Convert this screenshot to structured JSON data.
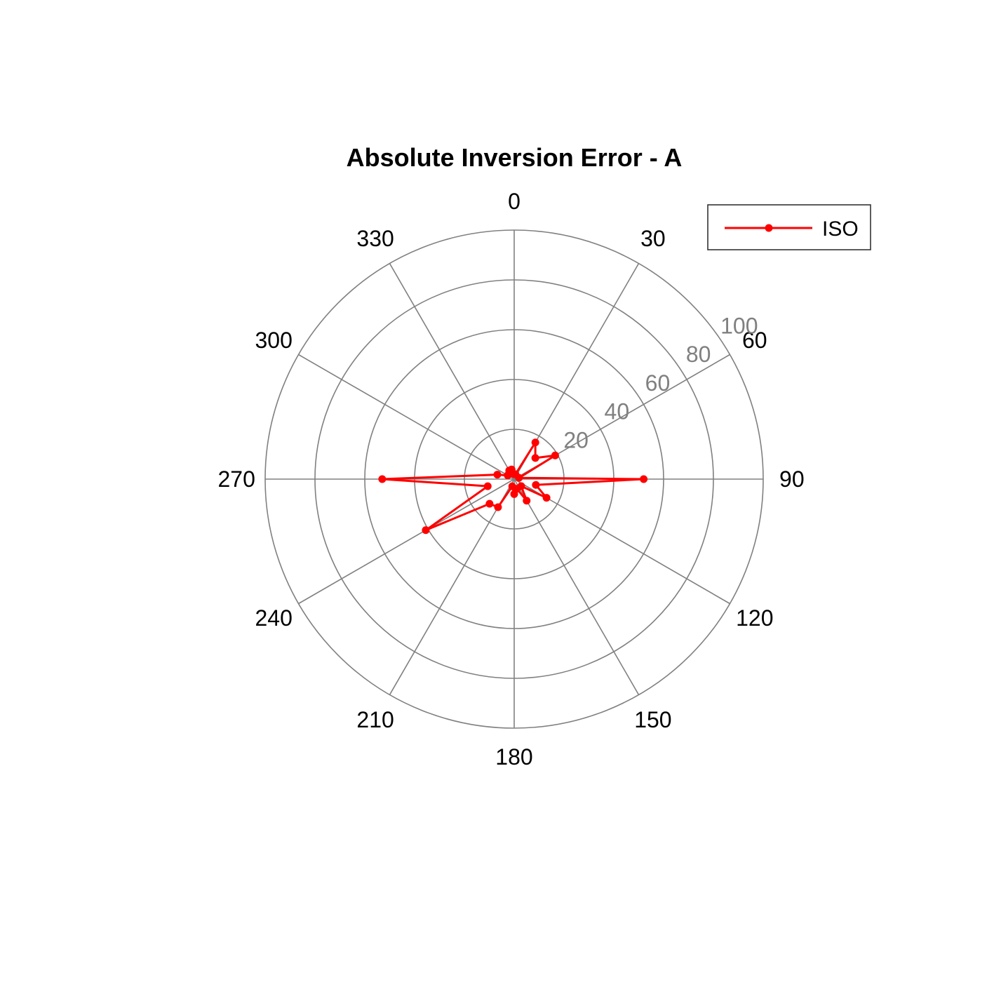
{
  "chart_data": {
    "type": "polar-line",
    "title": "Absolute Inversion Error - A",
    "theta_direction": "clockwise",
    "theta_zero_location": "top",
    "theta_ticks": [
      0,
      30,
      60,
      90,
      120,
      150,
      180,
      210,
      240,
      270,
      300,
      330
    ],
    "theta_tick_labels": [
      "0",
      "30",
      "60",
      "90",
      "120",
      "150",
      "180",
      "210",
      "240",
      "270",
      "300",
      "330"
    ],
    "rlim": [
      0,
      100
    ],
    "r_ticks": [
      20,
      40,
      60,
      80,
      100
    ],
    "r_tick_labels": [
      "20",
      "40",
      "60",
      "80",
      "100"
    ],
    "r_tick_angle": 55,
    "grid": true,
    "legend_position": "top-right",
    "series": [
      {
        "name": "ISO",
        "color": "#ff0000",
        "marker": "dot",
        "theta": [
          0,
          15,
          30,
          45,
          60,
          75,
          90,
          105,
          120,
          135,
          150,
          165,
          180,
          195,
          210,
          225,
          240,
          255,
          270,
          285,
          300,
          315,
          330,
          345,
          360
        ],
        "r": [
          2,
          2,
          17,
          12,
          19,
          2,
          52,
          9,
          15,
          4,
          10,
          4,
          6,
          3,
          13,
          14,
          41,
          11,
          53,
          7,
          3,
          3,
          4,
          4,
          2
        ]
      }
    ]
  }
}
